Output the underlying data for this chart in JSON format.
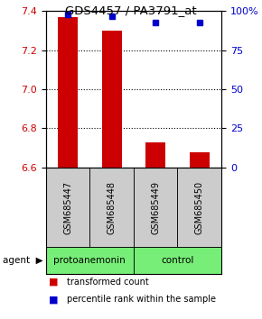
{
  "title": "GDS4457 / PA3791_at",
  "samples": [
    "GSM685447",
    "GSM685448",
    "GSM685449",
    "GSM685450"
  ],
  "red_values": [
    7.37,
    7.3,
    6.73,
    6.68
  ],
  "blue_values": [
    98,
    97,
    93,
    93
  ],
  "ylim_left": [
    6.6,
    7.4
  ],
  "ylim_right": [
    0,
    100
  ],
  "yticks_left": [
    6.6,
    6.8,
    7.0,
    7.2,
    7.4
  ],
  "yticks_right": [
    0,
    25,
    50,
    75,
    100
  ],
  "ytick_labels_right": [
    "0",
    "25",
    "50",
    "75",
    "100%"
  ],
  "bar_color": "#cc0000",
  "dot_color": "#0000cc",
  "groups": [
    {
      "label": "protoanemonin",
      "indices": [
        0,
        1
      ],
      "color": "#77ee77"
    },
    {
      "label": "control",
      "indices": [
        2,
        3
      ],
      "color": "#77ee77"
    }
  ],
  "sample_box_color": "#cccccc",
  "legend_red_label": "transformed count",
  "legend_blue_label": "percentile rank within the sample",
  "agent_label": "agent",
  "background_color": "#ffffff",
  "plot_bg_color": "#ffffff"
}
